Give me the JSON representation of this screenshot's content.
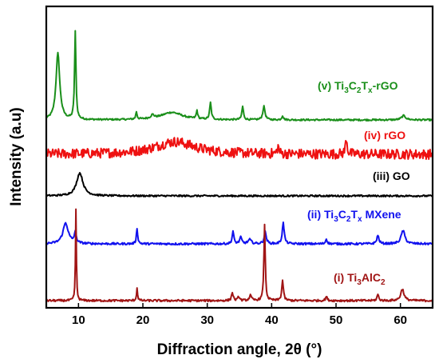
{
  "chart_data": {
    "type": "line",
    "xlabel": "Diffraction angle, 2θ (°)",
    "ylabel": "Intensity (a.u)",
    "xlim": [
      5,
      65
    ],
    "x_ticks": [
      10,
      20,
      30,
      40,
      50,
      60
    ],
    "y_ticks_shown": false,
    "grid": false,
    "legend": "labels placed next to each curve",
    "series": [
      {
        "name": "(v) Ti3C2Tx-rGO",
        "label": {
          "prefix": "(v) Ti",
          "sub1": "3",
          "mid1": "C",
          "sub2": "2",
          "mid2": "T",
          "sub3": "x",
          "suffix": "-rGO"
        },
        "color": "#1a8f1a",
        "offset": 4.0,
        "noise": 0.02,
        "peaks": [
          {
            "x": 6.8,
            "h": 1.6,
            "w": 0.35
          },
          {
            "x": 9.5,
            "h": 2.1,
            "w": 0.13
          },
          {
            "x": 19.0,
            "h": 0.18,
            "w": 0.12
          },
          {
            "x": 21.5,
            "h": 0.08,
            "w": 0.3
          },
          {
            "x": 24.5,
            "h": 0.18,
            "w": 2.0
          },
          {
            "x": 28.4,
            "h": 0.2,
            "w": 0.12
          },
          {
            "x": 30.5,
            "h": 0.4,
            "w": 0.15
          },
          {
            "x": 35.5,
            "h": 0.32,
            "w": 0.15
          },
          {
            "x": 38.8,
            "h": 0.32,
            "w": 0.2
          },
          {
            "x": 41.7,
            "h": 0.1,
            "w": 0.15
          },
          {
            "x": 60.5,
            "h": 0.1,
            "w": 0.4
          }
        ]
      },
      {
        "name": "(iv) rGO",
        "label": {
          "prefix": "(iv) rGO"
        },
        "color": "#ee1111",
        "offset": 3.0,
        "noise": 0.12,
        "peaks": [
          {
            "x": 25.0,
            "h": 0.3,
            "w": 3.8
          },
          {
            "x": 51.6,
            "h": 0.4,
            "w": 0.15
          },
          {
            "x": 41.0,
            "h": 0.18,
            "w": 0.15
          }
        ]
      },
      {
        "name": "(iii) GO",
        "label": {
          "prefix": "(iii) GO"
        },
        "color": "#000000",
        "offset": 2.0,
        "noise": 0.02,
        "peaks": [
          {
            "x": 10.2,
            "h": 0.55,
            "w": 0.6
          }
        ]
      },
      {
        "name": "(ii) Ti3C2Tx MXene",
        "label": {
          "prefix": "(ii) Ti",
          "sub1": "3",
          "mid1": "C",
          "sub2": "2",
          "mid2": "T",
          "sub3": "x",
          "suffix": " MXene"
        },
        "color": "#1111ee",
        "offset": 1.0,
        "noise": 0.025,
        "peaks": [
          {
            "x": 8.0,
            "h": 0.5,
            "w": 0.5
          },
          {
            "x": 9.5,
            "h": 0.25,
            "w": 0.2
          },
          {
            "x": 19.1,
            "h": 0.38,
            "w": 0.12
          },
          {
            "x": 34.0,
            "h": 0.3,
            "w": 0.15
          },
          {
            "x": 35.2,
            "h": 0.15,
            "w": 0.2
          },
          {
            "x": 36.6,
            "h": 0.1,
            "w": 0.3
          },
          {
            "x": 39.0,
            "h": 0.28,
            "w": 0.2
          },
          {
            "x": 41.8,
            "h": 0.5,
            "w": 0.18
          },
          {
            "x": 48.5,
            "h": 0.12,
            "w": 0.15
          },
          {
            "x": 56.5,
            "h": 0.2,
            "w": 0.2
          },
          {
            "x": 60.4,
            "h": 0.32,
            "w": 0.35
          }
        ]
      },
      {
        "name": "(i) Ti3AlC2",
        "label": {
          "prefix": "(i) Ti",
          "sub1": "3",
          "mid1": "AlC",
          "sub2": "2"
        },
        "color": "#a01414",
        "offset": 0.0,
        "noise": 0.025,
        "peaks": [
          {
            "x": 9.6,
            "h": 2.2,
            "w": 0.08
          },
          {
            "x": 19.1,
            "h": 0.3,
            "w": 0.1
          },
          {
            "x": 33.9,
            "h": 0.2,
            "w": 0.15
          },
          {
            "x": 34.9,
            "h": 0.1,
            "w": 0.15
          },
          {
            "x": 36.7,
            "h": 0.12,
            "w": 0.2
          },
          {
            "x": 38.9,
            "h": 1.85,
            "w": 0.12
          },
          {
            "x": 41.7,
            "h": 0.48,
            "w": 0.15
          },
          {
            "x": 48.5,
            "h": 0.1,
            "w": 0.15
          },
          {
            "x": 56.5,
            "h": 0.15,
            "w": 0.15
          },
          {
            "x": 60.3,
            "h": 0.28,
            "w": 0.3
          }
        ]
      }
    ]
  }
}
